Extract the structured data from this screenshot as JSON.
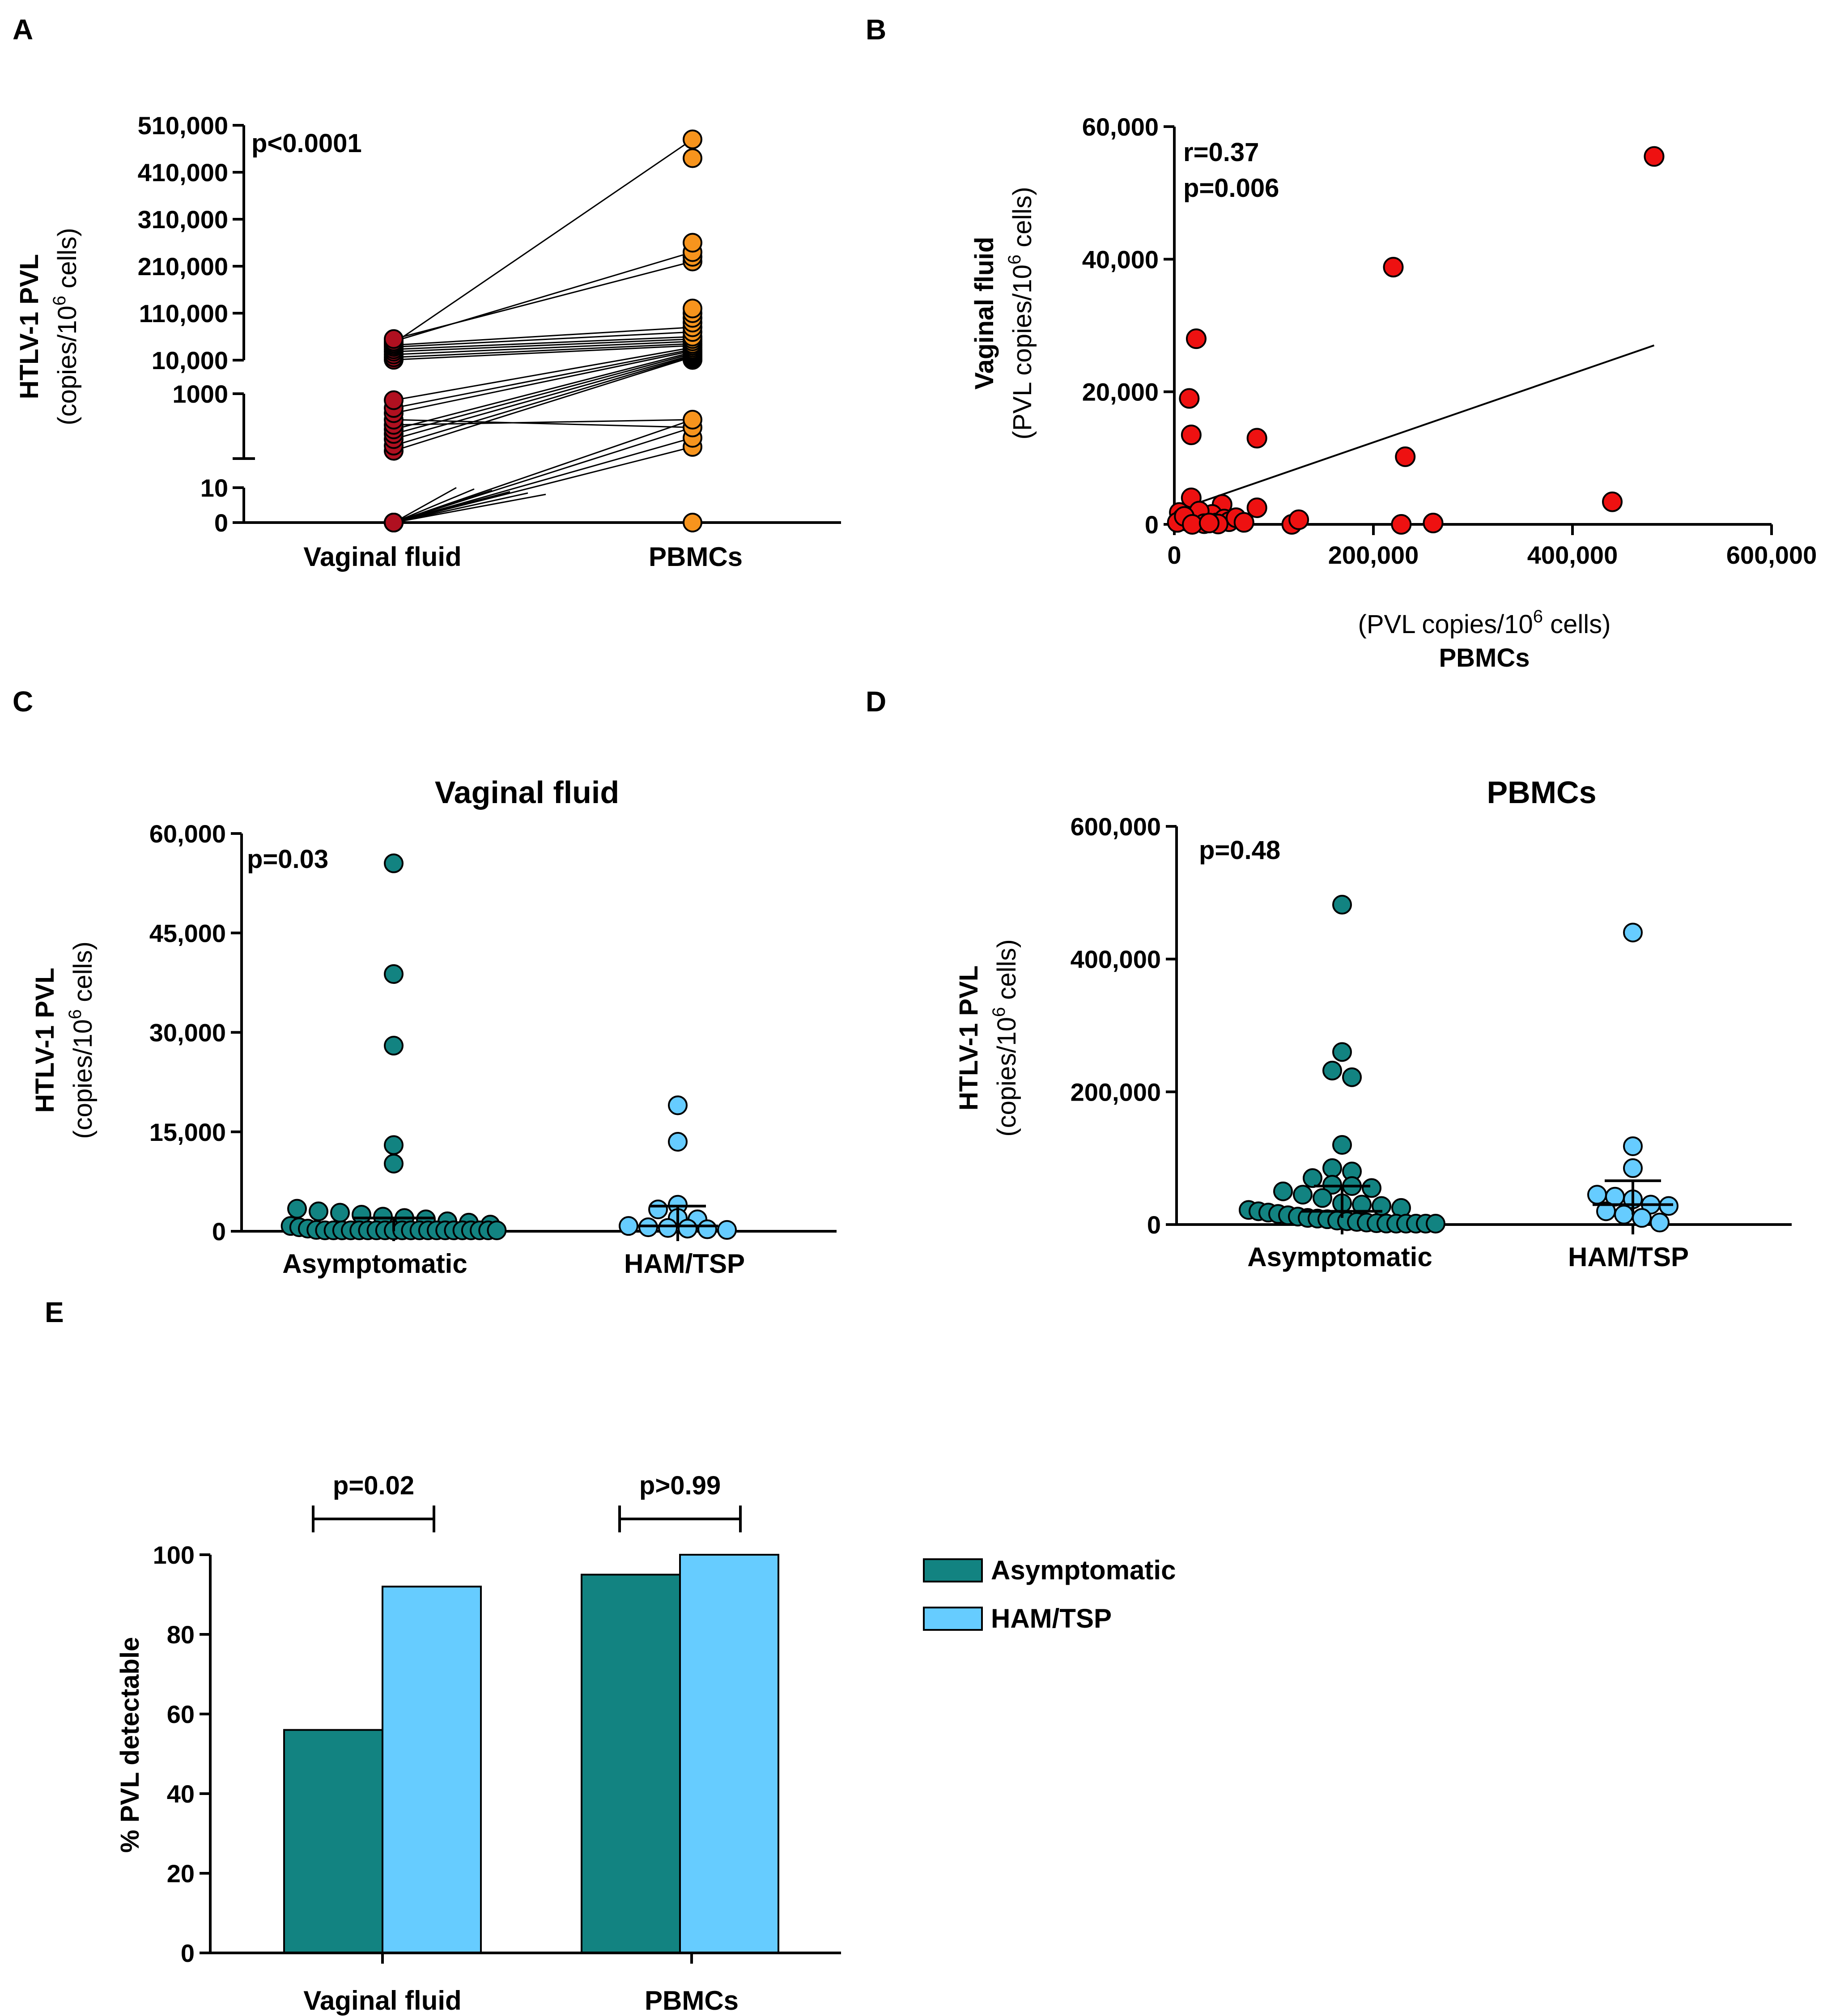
{
  "colors": {
    "asymptomatic": "#128381",
    "ham_tsp": "#66CCFF",
    "paired_vaginal": "#B01020",
    "paired_pbmc": "#F7941D",
    "correlation": "#EE1111"
  },
  "panels": {
    "A": {
      "letter": "A"
    },
    "B": {
      "letter": "B"
    },
    "C": {
      "letter": "C"
    },
    "D": {
      "letter": "D"
    },
    "E": {
      "letter": "E"
    }
  },
  "chart_data": [
    {
      "id": "A",
      "type": "scatter",
      "title": "",
      "ylabel_line1": "HTLV-1 PVL",
      "ylabel_line2": "(copies/10",
      "ylabel_sup": "6",
      "ylabel_line2_end": " cells)",
      "annotation": "p<0.0001",
      "categories": [
        "Vaginal fluid",
        "PBMCs"
      ],
      "yticks_upper": [
        "510,000",
        "410,000",
        "310,000",
        "210,000",
        "110,000",
        "10,000"
      ],
      "yticks_middle": [
        "1000"
      ],
      "yticks_lower": [
        "10",
        "0"
      ],
      "segments": [
        {
          "range": [
            0,
            10
          ]
        },
        {
          "range": [
            0,
            1000
          ]
        },
        {
          "range": [
            10000,
            510000
          ]
        }
      ],
      "vaginal_fluid": [
        0,
        0,
        0,
        0,
        0,
        0,
        0,
        0,
        0,
        0,
        0,
        0,
        0,
        0,
        0,
        0,
        0,
        0,
        0,
        0,
        120,
        200,
        300,
        380,
        450,
        520,
        600,
        700,
        780,
        900,
        10800,
        16000,
        22000,
        28000,
        33000,
        38000,
        42000,
        46000,
        50000,
        55000
      ],
      "pbmcs": [
        0,
        180,
        320,
        480,
        600,
        10500,
        11000,
        12000,
        13500,
        15000,
        17000,
        19000,
        21000,
        24000,
        27000,
        30000,
        33000,
        37000,
        41000,
        45000,
        50000,
        55000,
        60000,
        70000,
        80000,
        90000,
        100000,
        110000,
        120000,
        220000,
        230000,
        240000,
        260000,
        440000,
        480000
      ],
      "pairs": [
        [
          0,
          0
        ],
        [
          0,
          180
        ],
        [
          0,
          320
        ],
        [
          0,
          480
        ],
        [
          0,
          600
        ],
        [
          120,
          17000
        ],
        [
          200,
          19000
        ],
        [
          300,
          21000
        ],
        [
          380,
          24000
        ],
        [
          450,
          27000
        ],
        [
          520,
          600
        ],
        [
          600,
          480
        ],
        [
          700,
          30000
        ],
        [
          780,
          33000
        ],
        [
          900,
          37000
        ],
        [
          10800,
          41000
        ],
        [
          16000,
          45000
        ],
        [
          22000,
          50000
        ],
        [
          28000,
          55000
        ],
        [
          33000,
          60000
        ],
        [
          38000,
          70000
        ],
        [
          42000,
          80000
        ],
        [
          46000,
          480000
        ],
        [
          50000,
          240000
        ],
        [
          55000,
          220000
        ]
      ]
    },
    {
      "id": "B",
      "type": "scatter",
      "title": "",
      "xlabel_line1": "(PVL copies/10",
      "xlabel_sup": "6",
      "xlabel_line1_end": " cells)",
      "xlabel_line2": "PBMCs",
      "ylabel_line1": "Vaginal fluid",
      "ylabel_line2": "(PVL copies/10",
      "ylabel_sup": "6",
      "ylabel_line2_end": " cells)",
      "annotation_r": "r=0.37",
      "annotation_p": "p=0.006",
      "xlim": [
        0,
        600000
      ],
      "ylim": [
        0,
        60000
      ],
      "xticks": [
        {
          "v": 0,
          "label": "0"
        },
        {
          "v": 200000,
          "label": "200,000"
        },
        {
          "v": 400000,
          "label": "400,000"
        },
        {
          "v": 600000,
          "label": "600,000"
        }
      ],
      "yticks": [
        {
          "v": 0,
          "label": "0"
        },
        {
          "v": 20000,
          "label": "20,000"
        },
        {
          "v": 40000,
          "label": "40,000"
        },
        {
          "v": 60000,
          "label": "60,000"
        }
      ],
      "points": [
        [
          482000,
          55500
        ],
        [
          220000,
          38800
        ],
        [
          22000,
          28000
        ],
        [
          15000,
          19000
        ],
        [
          17000,
          13500
        ],
        [
          83000,
          13000
        ],
        [
          232000,
          10200
        ],
        [
          440000,
          3400
        ],
        [
          17000,
          4000
        ],
        [
          48000,
          3000
        ],
        [
          83000,
          2500
        ],
        [
          5000,
          1800
        ],
        [
          8000,
          900
        ],
        [
          12000,
          500
        ],
        [
          20000,
          300
        ],
        [
          28000,
          1200
        ],
        [
          33000,
          600
        ],
        [
          38000,
          1500
        ],
        [
          42000,
          200
        ],
        [
          50000,
          800
        ],
        [
          55000,
          400
        ],
        [
          62000,
          1000
        ],
        [
          70000,
          300
        ],
        [
          25000,
          2000
        ],
        [
          30000,
          100
        ],
        [
          44000,
          50
        ],
        [
          118000,
          0
        ],
        [
          125000,
          700
        ],
        [
          228000,
          0
        ],
        [
          260000,
          200
        ],
        [
          3000,
          300
        ],
        [
          10000,
          1200
        ],
        [
          18000,
          0
        ],
        [
          35000,
          200
        ]
      ],
      "trend": [
        [
          0,
          2000
        ],
        [
          482000,
          27000
        ]
      ]
    },
    {
      "id": "C",
      "type": "scatter",
      "title": "Vaginal fluid",
      "ylabel_line1": "HTLV-1 PVL",
      "ylabel_line2": "(copies/10",
      "ylabel_sup": "6",
      "ylabel_line2_end": " cells)",
      "annotation": "p=0.03",
      "categories": [
        "Asymptomatic",
        "HAM/TSP"
      ],
      "ylim": [
        0,
        60000
      ],
      "yticks": [
        {
          "v": 0,
          "label": "0"
        },
        {
          "v": 15000,
          "label": "15,000"
        },
        {
          "v": 30000,
          "label": "30,000"
        },
        {
          "v": 45000,
          "label": "45,000"
        },
        {
          "v": 60000,
          "label": "60,000"
        }
      ],
      "series": [
        {
          "name": "Asymptomatic",
          "median": 2000,
          "iqr": [
            0,
            2000
          ],
          "values": [
            55500,
            38800,
            28000,
            13000,
            10200,
            3400,
            3000,
            2800,
            2500,
            2200,
            2000,
            1800,
            1500,
            1300,
            1000,
            800,
            600,
            400,
            200,
            100,
            0,
            0,
            0,
            0,
            0,
            0,
            0,
            0,
            0,
            0,
            0,
            0,
            0,
            0,
            0,
            0,
            0,
            0,
            0,
            0
          ]
        },
        {
          "name": "HAM/TSP",
          "median": 800,
          "iqr": [
            500,
            3800
          ],
          "values": [
            19000,
            13500,
            4000,
            3300,
            2000,
            1800,
            800,
            600,
            500,
            400,
            300,
            200
          ]
        }
      ]
    },
    {
      "id": "D",
      "type": "scatter",
      "title": "PBMCs",
      "ylabel_line1": "HTLV-1 PVL",
      "ylabel_line2": "(copies/10",
      "ylabel_sup": "6",
      "ylabel_line2_end": " cells)",
      "annotation": "p=0.48",
      "categories": [
        "Asymptomatic",
        "HAM/TSP"
      ],
      "ylim": [
        0,
        600000
      ],
      "yticks": [
        {
          "v": 0,
          "label": "0"
        },
        {
          "v": 200000,
          "label": "200,000"
        },
        {
          "v": 400000,
          "label": "400,000"
        },
        {
          "v": 600000,
          "label": "600,000"
        }
      ],
      "series": [
        {
          "name": "Asymptomatic",
          "median": 20000,
          "iqr": [
            10000,
            58000
          ],
          "values": [
            482000,
            260000,
            232000,
            222000,
            120000,
            85000,
            80000,
            70000,
            60000,
            58000,
            55000,
            50000,
            45000,
            40000,
            32000,
            30000,
            28000,
            25000,
            22000,
            20000,
            18000,
            16000,
            14000,
            12000,
            10000,
            9000,
            8000,
            6000,
            5000,
            4000,
            3000,
            2000,
            1500,
            1000,
            500,
            300,
            200,
            100
          ]
        },
        {
          "name": "HAM/TSP",
          "median": 30000,
          "iqr": [
            15000,
            66000
          ],
          "values": [
            440000,
            118000,
            85000,
            45000,
            42000,
            38000,
            30000,
            28000,
            20000,
            15000,
            10000,
            3000
          ]
        }
      ]
    },
    {
      "id": "E",
      "type": "bar",
      "title": "",
      "ylabel": "% PVL detectable",
      "categories": [
        "Vaginal fluid",
        "PBMCs"
      ],
      "ylim": [
        0,
        100
      ],
      "yticks": [
        {
          "v": 0,
          "label": "0"
        },
        {
          "v": 20,
          "label": "20"
        },
        {
          "v": 40,
          "label": "40"
        },
        {
          "v": 60,
          "label": "60"
        },
        {
          "v": 80,
          "label": "80"
        },
        {
          "v": 100,
          "label": "100"
        }
      ],
      "series": [
        {
          "name": "Asymptomatic",
          "values": [
            56,
            95
          ]
        },
        {
          "name": "HAM/TSP",
          "values": [
            92,
            100
          ]
        }
      ],
      "comparisons": [
        "p=0.02",
        "p>0.99"
      ],
      "legend": [
        "Asymptomatic",
        "HAM/TSP"
      ],
      "legend_position": "right"
    }
  ]
}
